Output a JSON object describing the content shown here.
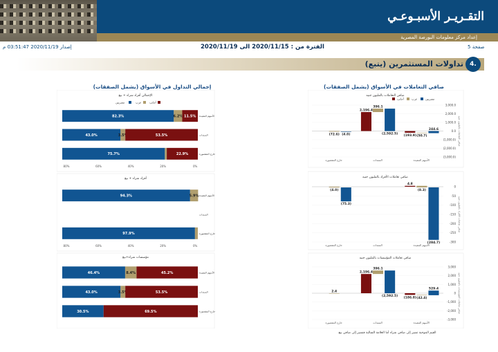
{
  "header": {
    "title": "التقـريـر الأسبـوعـي",
    "subtitle": "إعداد مركز معلومات البورصة المصرية",
    "page": "صفحة 5",
    "period_label": "الفترة من : 2020/11/15 الى 2020/11/19",
    "issue": "إصدار 2020/11/19 03:51:47 م"
  },
  "section": {
    "number": "4.",
    "title": "تداولات المستثمرين (يتبع)"
  },
  "colors": {
    "navy": "#0c4a7c",
    "gold": "#b09e6e",
    "maroon": "#7a1010",
    "blue_series": "#115592"
  },
  "right_column": {
    "title": "صافي التعاملات في الأسواق (يشمل الصفقات)",
    "legend": [
      "مصريين",
      "عرب",
      "أجانب"
    ],
    "categories": [
      "الأسهم المقيدة",
      "السندات",
      "خارج المقصورة"
    ],
    "charts": [
      {
        "subtitle": "صافي التعاملات بالمليون جنيه",
        "yticks": [
          "3,000.0",
          "2,000.0",
          "1,000.0",
          "0.0",
          "(1,000.0)",
          "(2,000.0)",
          "(3,000.0)"
        ],
        "ylabel": "صافي التعاملات بالمليون جنيه"
      },
      {
        "subtitle": "صافي تعاملات الأفراد بالمليون جنيه",
        "yticks": [
          "0",
          "-50",
          "-100",
          "-150",
          "-200",
          "-250",
          "-300"
        ],
        "ylabel": "صافي تعاملات الأفراد بالمليون جنيه"
      },
      {
        "subtitle": "صافي تعاملات المؤسسات بالمليون جنيه",
        "yticks": [
          "3,000",
          "2,000",
          "1,000",
          "0",
          "-1,000",
          "-2,000",
          "-3,000"
        ],
        "ylabel": "صافي تعاملات المؤسسات بالمليون جنيه"
      }
    ],
    "footnote": "القيم الموجبة تشير إلى صافي شراء أما العلامة السالبة فتشير إلى صافي بيع"
  },
  "left_column": {
    "title": "إجمالي التداول في الأسواق (يشمل الصفقات)",
    "legend": [
      "مصريين",
      "عرب",
      "أجانب"
    ],
    "xticks": [
      "80%",
      "60%",
      "40%",
      "20%",
      "0%"
    ],
    "categories": [
      "الأسهم المقيدة",
      "السندات",
      "خارج المقصورة"
    ],
    "charts": [
      {
        "subtitle": "الإجمالي أفراد شراء + بيع"
      },
      {
        "subtitle": "أفراد شراء + بيع"
      },
      {
        "subtitle": "مؤسسات شراء+بيع"
      }
    ]
  },
  "chart_data": [
    {
      "type": "bar",
      "title": "صافي التعاملات بالمليون جنيه",
      "categories": [
        "الأسهم المقيدة",
        "السندات",
        "خارج المقصورة"
      ],
      "series": [
        {
          "name": "مصريين",
          "values": [
            244.6,
            -2592.5,
            -4.0
          ]
        },
        {
          "name": "عرب",
          "values": [
            -50.7,
            396.1,
            -72.6
          ]
        },
        {
          "name": "أجانب",
          "values": [
            -193.9,
            2196.4,
            null
          ]
        }
      ],
      "ylim": [
        -3000,
        3000
      ]
    },
    {
      "type": "bar",
      "title": "صافي تعاملات الأفراد بالمليون جنيه",
      "categories": [
        "الأسهم المقيدة",
        "السندات",
        "خارج المقصورة"
      ],
      "series": [
        {
          "name": "مصريين",
          "values": [
            -284.7,
            null,
            -75.3
          ]
        },
        {
          "name": "عرب",
          "values": [
            -8.3,
            null,
            -4.0
          ]
        },
        {
          "name": "أجانب",
          "values": [
            4.8,
            null,
            null
          ]
        }
      ],
      "ylim": [
        -300,
        0
      ]
    },
    {
      "type": "bar",
      "title": "صافي تعاملات المؤسسات بالمليون جنيه",
      "categories": [
        "الأسهم المقيدة",
        "السندات",
        "خارج المقصورة"
      ],
      "series": [
        {
          "name": "مصريين",
          "values": [
            529.4,
            -2592.5,
            null
          ]
        },
        {
          "name": "عرب",
          "values": [
            -42.4,
            396.1,
            2.4
          ]
        },
        {
          "name": "أجانب",
          "values": [
            -186.8,
            2196.4,
            null
          ]
        }
      ],
      "ylim": [
        -3000,
        3000
      ]
    },
    {
      "type": "bar",
      "title": "الإجمالي أفراد شراء + بيع",
      "categories": [
        "الأسهم المقيدة",
        "السندات",
        "خارج المقصورة"
      ],
      "series": [
        {
          "name": "مصريين",
          "values": [
            82.3,
            43.0,
            75.7
          ]
        },
        {
          "name": "عرب",
          "values": [
            6.2,
            3.5,
            1.4
          ]
        },
        {
          "name": "أجانب",
          "values": [
            11.5,
            53.5,
            22.9
          ]
        }
      ]
    },
    {
      "type": "bar",
      "title": "أفراد شراء + بيع",
      "categories": [
        "الأسهم المقيدة",
        "السندات",
        "خارج المقصورة"
      ],
      "series": [
        {
          "name": "مصريين",
          "values": [
            94.3,
            null,
            97.9
          ]
        },
        {
          "name": "عرب",
          "values": [
            5.9,
            null,
            2.1
          ]
        },
        {
          "name": "أجانب",
          "values": [
            null,
            null,
            null
          ]
        }
      ]
    },
    {
      "type": "bar",
      "title": "مؤسسات شراء+بيع",
      "categories": [
        "الأسهم المقيدة",
        "السندات",
        "خارج المقصورة"
      ],
      "series": [
        {
          "name": "مصريين",
          "values": [
            46.4,
            43.0,
            30.5
          ]
        },
        {
          "name": "عرب",
          "values": [
            8.4,
            3.5,
            null
          ]
        },
        {
          "name": "أجانب",
          "values": [
            45.2,
            53.5,
            69.5
          ]
        }
      ]
    }
  ]
}
